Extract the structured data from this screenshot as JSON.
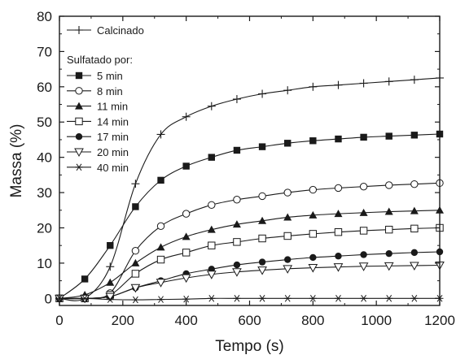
{
  "chart_data": {
    "type": "line",
    "xlabel": "Tempo (s)",
    "ylabel": "Massa (%)",
    "xlim": [
      0,
      1200
    ],
    "ylim": [
      -2,
      80
    ],
    "xticks": [
      0,
      200,
      400,
      600,
      800,
      1000,
      1200
    ],
    "yticks": [
      0,
      10,
      20,
      30,
      40,
      50,
      60,
      70,
      80
    ],
    "grid": false,
    "legend_position": "top-left",
    "legend_subtitle": "Sulfatado por:",
    "series": [
      {
        "name": "Calcinado",
        "marker": "plus",
        "x": [
          0,
          80,
          160,
          240,
          320,
          400,
          480,
          560,
          640,
          720,
          800,
          880,
          960,
          1040,
          1120,
          1200
        ],
        "y": [
          0,
          0,
          9,
          32.5,
          46.5,
          51.5,
          54.5,
          56.5,
          58,
          59,
          60,
          60.5,
          61,
          61.5,
          62,
          62.5
        ]
      },
      {
        "name": "5 min",
        "marker": "filled-square",
        "x": [
          0,
          80,
          160,
          240,
          320,
          400,
          480,
          560,
          640,
          720,
          800,
          880,
          960,
          1040,
          1120,
          1200
        ],
        "y": [
          0,
          5.5,
          15,
          26,
          33.5,
          37.5,
          40,
          42,
          43,
          44,
          44.7,
          45.2,
          45.7,
          46,
          46.3,
          46.6
        ]
      },
      {
        "name": "8 min",
        "marker": "open-circle",
        "x": [
          0,
          80,
          160,
          240,
          320,
          400,
          480,
          560,
          640,
          720,
          800,
          880,
          960,
          1040,
          1120,
          1200
        ],
        "y": [
          0,
          0,
          1.5,
          13.5,
          20.5,
          24,
          26.5,
          28,
          29,
          30,
          30.8,
          31.3,
          31.7,
          32.1,
          32.4,
          32.7
        ]
      },
      {
        "name": "11 min",
        "marker": "filled-triangle",
        "x": [
          0,
          80,
          160,
          240,
          320,
          400,
          480,
          560,
          640,
          720,
          800,
          880,
          960,
          1040,
          1120,
          1200
        ],
        "y": [
          0,
          1,
          4.5,
          10,
          14.5,
          17.5,
          19.5,
          21,
          22,
          23,
          23.6,
          24,
          24.3,
          24.6,
          24.8,
          25
        ]
      },
      {
        "name": "14 min",
        "marker": "open-square",
        "x": [
          0,
          80,
          160,
          240,
          320,
          400,
          480,
          560,
          640,
          720,
          800,
          880,
          960,
          1040,
          1120,
          1200
        ],
        "y": [
          0,
          0,
          1,
          7,
          11,
          13,
          15,
          16,
          17,
          17.7,
          18.3,
          18.8,
          19.2,
          19.5,
          19.8,
          20
        ]
      },
      {
        "name": "17 min",
        "marker": "filled-circle",
        "x": [
          0,
          80,
          160,
          240,
          320,
          400,
          480,
          560,
          640,
          720,
          800,
          880,
          960,
          1040,
          1120,
          1200
        ],
        "y": [
          0,
          0,
          0.5,
          3,
          5,
          7,
          8.3,
          9.5,
          10.3,
          11,
          11.6,
          12,
          12.4,
          12.7,
          13,
          13.2
        ]
      },
      {
        "name": "20 min",
        "marker": "open-triangle-down",
        "x": [
          0,
          80,
          160,
          240,
          320,
          400,
          480,
          560,
          640,
          720,
          800,
          880,
          960,
          1040,
          1120,
          1200
        ],
        "y": [
          0,
          0,
          0.5,
          3,
          4.5,
          5.8,
          6.8,
          7.5,
          8,
          8.4,
          8.7,
          8.9,
          9.1,
          9.2,
          9.3,
          9.4
        ]
      },
      {
        "name": "40 min",
        "marker": "asterisk",
        "x": [
          0,
          80,
          160,
          240,
          320,
          400,
          480,
          560,
          640,
          720,
          800,
          880,
          960,
          1040,
          1120,
          1200
        ],
        "y": [
          0,
          0,
          -0.3,
          -0.4,
          -0.3,
          -0.2,
          0,
          0,
          0,
          0,
          0,
          0,
          0,
          0,
          0,
          0
        ]
      }
    ]
  }
}
